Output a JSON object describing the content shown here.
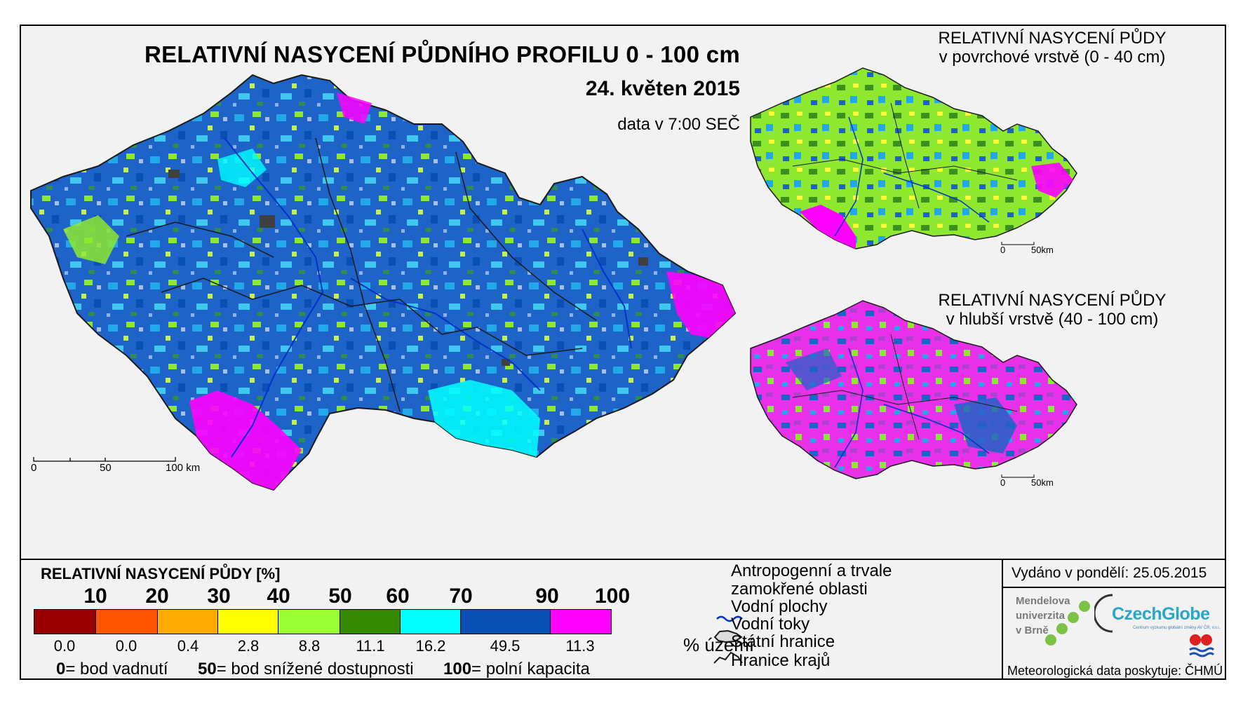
{
  "title": "RELATIVNÍ NASYCENÍ PŮDNÍHO PROFILU 0 - 100 cm",
  "date": "24. květen 2015",
  "data_time": "data v 7:00 SEČ",
  "main_scale": {
    "labels": [
      "0",
      "50",
      "100 km"
    ]
  },
  "inset_surface": {
    "title_line1": "RELATIVNÍ NASYCENÍ PŮDY",
    "title_line2": "v povrchové vrstvě (0 - 40 cm)",
    "scale_labels": [
      "0",
      "50km"
    ]
  },
  "inset_deep": {
    "title_line1": "RELATIVNÍ NASYCENÍ PŮDY",
    "title_line2": "v hlubší vrstvě (40 - 100 cm)",
    "scale_labels": [
      "0",
      "50km"
    ]
  },
  "legend": {
    "title": "RELATIVNÍ NASYCENÍ PŮDY [%]",
    "ticks": [
      "10",
      "20",
      "30",
      "40",
      "50",
      "60",
      "70",
      "90",
      "100"
    ],
    "classes": [
      {
        "color": "#990000",
        "pct": "0.0"
      },
      {
        "color": "#ff5500",
        "pct": "0.0"
      },
      {
        "color": "#ffaa00",
        "pct": "0.4"
      },
      {
        "color": "#ffff00",
        "pct": "2.8"
      },
      {
        "color": "#99ff33",
        "pct": "8.8"
      },
      {
        "color": "#338a00",
        "pct": "11.1"
      },
      {
        "color": "#00ffff",
        "pct": "16.2"
      },
      {
        "color": "#0a50b4",
        "pct": "49.5"
      },
      {
        "color": "#ff00ff",
        "pct": "11.3"
      }
    ],
    "pct_unit": "% území",
    "explain": [
      {
        "num": "0",
        "text": "= bod vadnutí"
      },
      {
        "num": "50",
        "text": "= bod snížené dostupnosti"
      },
      {
        "num": "100",
        "text": "= polní kapacita"
      }
    ]
  },
  "map_legend": {
    "anthropogenic_line1": "Antropogenní a trvale",
    "anthropogenic_line2": "zamokřené oblasti",
    "water_bodies": "Vodní plochy",
    "water_courses": "Vodní toky",
    "state_border": "Státní hranice",
    "region_border": "Hranice krajů"
  },
  "issued": "Vydáno v pondělí: 25.05.2015",
  "mendel": {
    "line1": "Mendelova",
    "line2": "univerzita",
    "line3": "v Brně"
  },
  "czechglobe": {
    "name": "CzechGlobe",
    "subtitle": "Centrum výzkumu globální změny AV ČR, v.v.i."
  },
  "met_data": "Meteorologická data poskytuje: ČHMÚ",
  "colors": {
    "anthropogenic": "#404040",
    "water_body": "#6fb4f5",
    "water_course": "#0033cc",
    "border": "#1a1a1a",
    "frame_bg": "#f2f2f2"
  }
}
